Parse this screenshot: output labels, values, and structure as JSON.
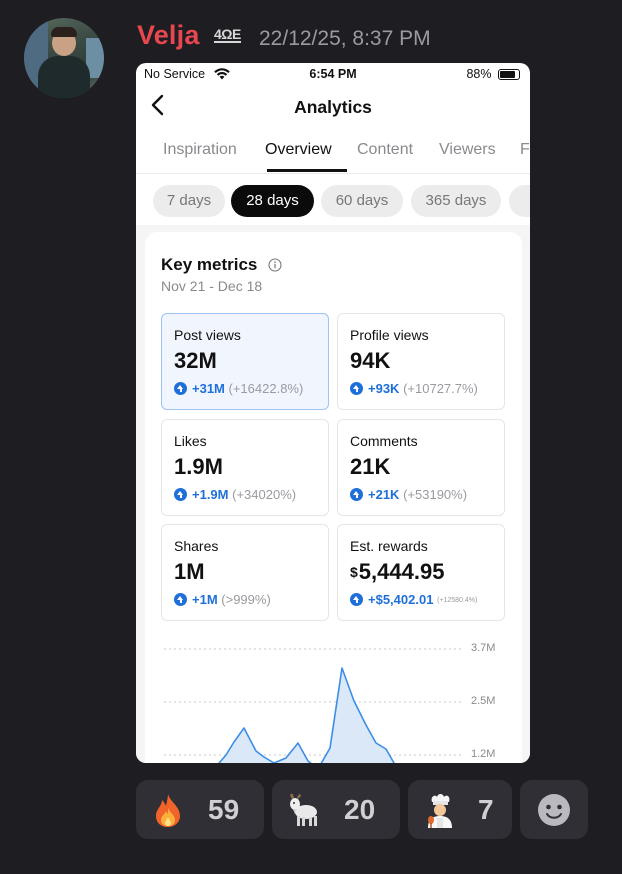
{
  "message": {
    "username": "Velja",
    "user_badge": "4ΩE",
    "timestamp": "22/12/25, 8:37 PM"
  },
  "status_bar": {
    "carrier": "No Service",
    "time": "6:54 PM",
    "battery": "88%"
  },
  "nav": {
    "title": "Analytics"
  },
  "tabs": [
    "Inspiration",
    "Overview",
    "Content",
    "Viewers",
    "F"
  ],
  "active_tab": "Overview",
  "day_chips": [
    "7 days",
    "28 days",
    "60 days",
    "365 days"
  ],
  "active_chip": "28 days",
  "key_metrics": {
    "title": "Key metrics",
    "range": "Nov 21 - Dec 18",
    "items": [
      {
        "label": "Post views",
        "value": "32M",
        "delta": "+31M",
        "pct": "(+16422.8%)"
      },
      {
        "label": "Profile views",
        "value": "94K",
        "delta": "+93K",
        "pct": "(+10727.7%)"
      },
      {
        "label": "Likes",
        "value": "1.9M",
        "delta": "+1.9M",
        "pct": "(+34020%)"
      },
      {
        "label": "Comments",
        "value": "21K",
        "delta": "+21K",
        "pct": "(+53190%)"
      },
      {
        "label": "Shares",
        "value": "1M",
        "delta": "+1M",
        "pct": "(>999%)"
      },
      {
        "label": "Est. rewards",
        "currency": "$",
        "value": "5,444.95",
        "delta": "+$5,402.01",
        "pct": "(+12580.4%)"
      }
    ]
  },
  "chart_data": {
    "type": "area",
    "y_ticks": [
      "3.7M",
      "2.5M",
      "1.2M"
    ],
    "series_color": "#3d8ee6"
  },
  "reactions": [
    {
      "icon": "fire-emoji",
      "count": "59"
    },
    {
      "icon": "goat-emoji",
      "count": "20"
    },
    {
      "icon": "cook-emoji",
      "count": "7"
    },
    {
      "icon": "add-reaction-icon",
      "count": ""
    }
  ]
}
